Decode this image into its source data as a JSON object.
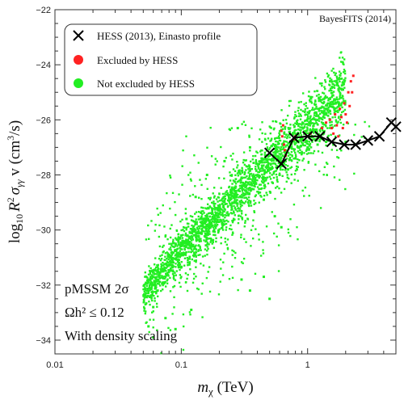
{
  "chart_data": {
    "type": "scatter",
    "xscale": "log",
    "xlim": [
      0.01,
      5
    ],
    "ylim": [
      -34.5,
      -22
    ],
    "x_ticks": [
      {
        "value": 0.01,
        "label": "0.01"
      },
      {
        "value": 0.1,
        "label": "0.1"
      },
      {
        "value": 1,
        "label": "1"
      }
    ],
    "y_ticks": [
      {
        "value": -22,
        "label": "−22"
      },
      {
        "value": -24,
        "label": "−24"
      },
      {
        "value": -26,
        "label": "−26"
      },
      {
        "value": -28,
        "label": "−28"
      },
      {
        "value": -30,
        "label": "−30"
      },
      {
        "value": -32,
        "label": "−32"
      },
      {
        "value": -34,
        "label": "−34"
      }
    ],
    "xlabel_parts": {
      "italic": "m",
      "sub": "χ",
      "rest": " (TeV)"
    },
    "ylabel_parts": {
      "log": "log",
      "log_sub": "10",
      "R": "R",
      "R_sup": "2",
      "sigma": "σ",
      "sigma_sub": "γγ",
      "v": " v (cm",
      "cm_sup": "3",
      "end": "/s)"
    },
    "corner_label": "BayesFITS (2014)",
    "annotations": [
      "pMSSM 2σ",
      "Ωh² ≤ 0.12",
      "With density scaling"
    ],
    "legend": [
      {
        "label": "HESS (2013), Einasto profile",
        "marker": "x",
        "color": "#000000"
      },
      {
        "label": "Excluded by HESS",
        "marker": "dot",
        "color": "#ff2222"
      },
      {
        "label": "Not excluded by HESS",
        "marker": "dot",
        "color": "#22ee22"
      }
    ],
    "series": [
      {
        "name": "HESS (2013), Einasto profile",
        "kind": "line-x",
        "color": "#000000",
        "points": [
          [
            0.5,
            -27.2
          ],
          [
            0.62,
            -27.6
          ],
          [
            0.78,
            -26.65
          ],
          [
            1.0,
            -26.6
          ],
          [
            1.25,
            -26.6
          ],
          [
            1.55,
            -26.8
          ],
          [
            1.95,
            -26.9
          ],
          [
            2.4,
            -26.9
          ],
          [
            3.0,
            -26.75
          ],
          [
            3.7,
            -26.6
          ],
          [
            4.6,
            -26.1
          ],
          [
            5.0,
            -26.25
          ]
        ]
      },
      {
        "name": "Excluded by HESS",
        "kind": "scatter",
        "color": "#ff2222",
        "points": [
          [
            0.62,
            -26.4
          ],
          [
            0.63,
            -26.6
          ],
          [
            0.64,
            -26.2
          ],
          [
            0.65,
            -26.9
          ],
          [
            0.66,
            -27.1
          ],
          [
            0.67,
            -27.3
          ],
          [
            0.78,
            -26.7
          ],
          [
            0.8,
            -26.6
          ],
          [
            1.0,
            -26.6
          ],
          [
            1.05,
            -26.5
          ],
          [
            1.3,
            -26.3
          ],
          [
            1.4,
            -26.1
          ],
          [
            1.5,
            -26.0
          ],
          [
            1.55,
            -26.3
          ],
          [
            1.6,
            -26.5
          ],
          [
            1.65,
            -25.8
          ],
          [
            1.7,
            -26.2
          ],
          [
            1.75,
            -26.6
          ],
          [
            1.8,
            -25.6
          ],
          [
            1.85,
            -25.9
          ],
          [
            1.9,
            -26.3
          ],
          [
            1.95,
            -25.4
          ],
          [
            2.0,
            -25.8
          ],
          [
            2.05,
            -26.1
          ],
          [
            2.1,
            -25.0
          ],
          [
            2.15,
            -25.5
          ],
          [
            2.2,
            -24.6
          ],
          [
            2.25,
            -25.0
          ],
          [
            2.3,
            -24.4
          ]
        ]
      },
      {
        "name": "Not excluded by HESS",
        "kind": "scatter",
        "color": "#22ee22",
        "points": [
          [
            0.055,
            -33.5
          ],
          [
            0.06,
            -32.8
          ],
          [
            0.06,
            -33.9
          ],
          [
            0.065,
            -32.2
          ],
          [
            0.07,
            -31.5
          ],
          [
            0.075,
            -33.2
          ],
          [
            0.08,
            -30.9
          ],
          [
            0.09,
            -30.5
          ],
          [
            0.1,
            -30.2
          ],
          [
            0.11,
            -29.6
          ],
          [
            0.12,
            -30.6
          ],
          [
            0.13,
            -28.8
          ],
          [
            0.15,
            -29.9
          ],
          [
            0.16,
            -28.0
          ],
          [
            0.2,
            -29.2
          ],
          [
            0.22,
            -27.5
          ],
          [
            0.25,
            -28.6
          ],
          [
            0.28,
            -26.3
          ],
          [
            0.3,
            -28.1
          ],
          [
            0.35,
            -27.0
          ],
          [
            0.4,
            -27.6
          ],
          [
            0.45,
            -28.9
          ],
          [
            0.5,
            -27.3
          ],
          [
            0.55,
            -29.5
          ],
          [
            0.6,
            -28.0
          ],
          [
            0.62,
            -29.9
          ],
          [
            0.7,
            -27.8
          ],
          [
            0.8,
            -27.4
          ],
          [
            0.9,
            -27.2
          ],
          [
            1.0,
            -27.0
          ],
          [
            1.2,
            -26.9
          ],
          [
            1.4,
            -26.8
          ],
          [
            1.6,
            -26.9
          ],
          [
            2.0,
            -26.8
          ],
          [
            0.3,
            -31.8
          ],
          [
            0.35,
            -32.2
          ],
          [
            0.45,
            -31.7
          ],
          [
            0.5,
            -32.5
          ],
          [
            0.12,
            -32.9
          ],
          [
            0.09,
            -33.6
          ]
        ]
      }
    ]
  }
}
